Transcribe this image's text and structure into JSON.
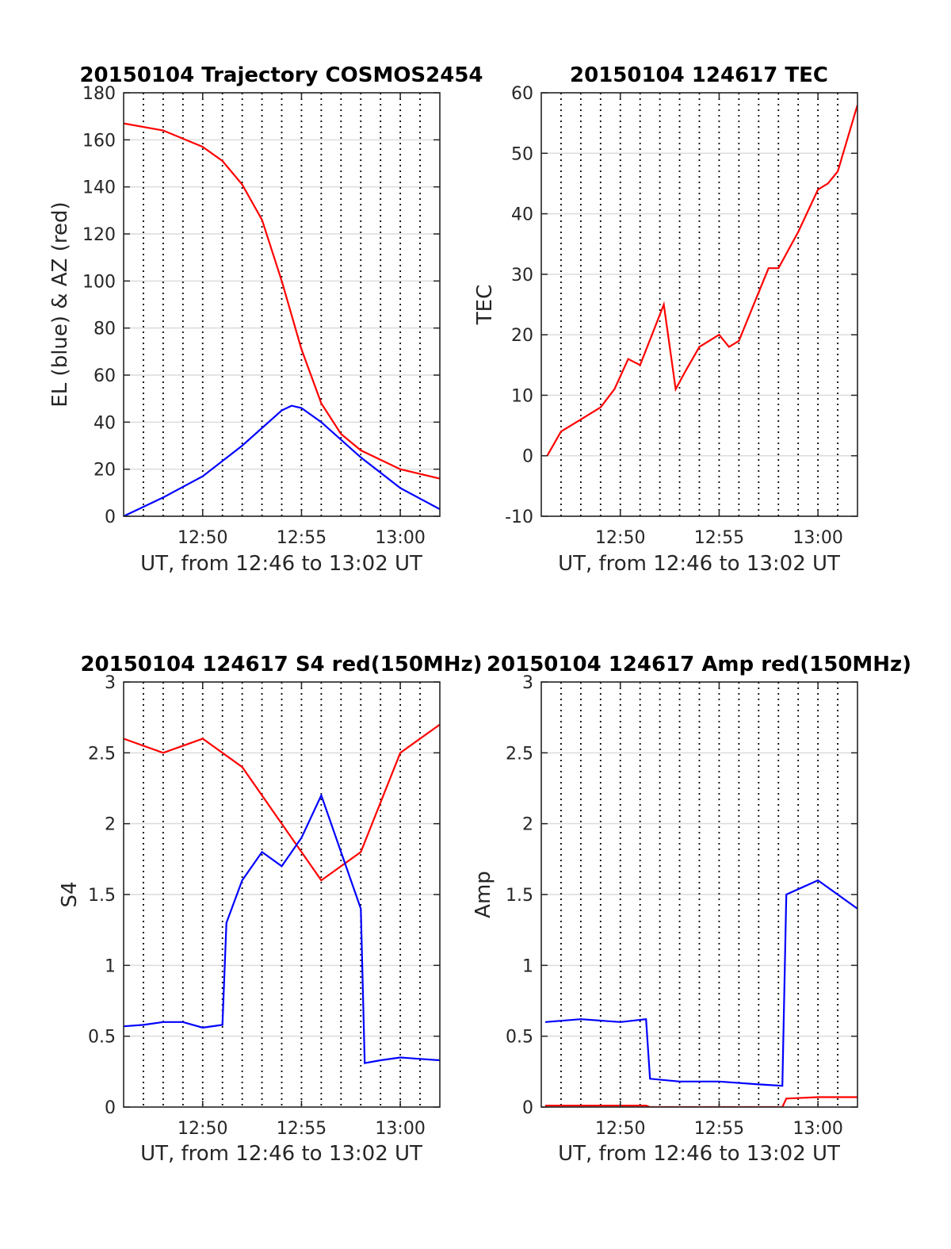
{
  "figure": {
    "background": "#ffffff"
  },
  "colors": {
    "red": "#ff0000",
    "blue": "#0000ff",
    "grid": "#dcdcdc",
    "vline": "#000000",
    "axis": "#262626"
  },
  "chart_data": [
    {
      "id": "trajectory",
      "type": "line",
      "title": "20150104 Trajectory COSMOS2454",
      "xlabel": "UT, from 12:46 to 13:02 UT",
      "ylabel": "EL (blue) & AZ (red)",
      "xlim": [
        "12:46",
        "13:02"
      ],
      "ylim": [
        0,
        180
      ],
      "yticks": [
        0,
        20,
        40,
        60,
        80,
        100,
        120,
        140,
        160,
        180
      ],
      "xticks": [
        "12:50",
        "12:55",
        "13:00"
      ],
      "grid": true,
      "legend": "none",
      "series": [
        {
          "color": "#ff0000",
          "x": [
            "12:46",
            "12:48",
            "12:50",
            "12:51",
            "12:52",
            "12:53",
            "12:54",
            "12:55",
            "12:56",
            "12:57",
            "12:58",
            "13:00",
            "13:02"
          ],
          "values": [
            167,
            164,
            157,
            151,
            141,
            126,
            100,
            71,
            48,
            35,
            28,
            20,
            16
          ]
        },
        {
          "color": "#0000ff",
          "x": [
            "12:46",
            "12:48",
            "12:50",
            "12:52",
            "12:54",
            "12:54.5",
            "12:55",
            "12:56",
            "12:58",
            "13:00",
            "13:02"
          ],
          "values": [
            0,
            8,
            17,
            30,
            45,
            47,
            46,
            40,
            25,
            12,
            3
          ]
        }
      ]
    },
    {
      "id": "tec",
      "type": "line",
      "title": "20150104 124617 TEC",
      "xlabel": "UT, from 12:46 to 13:02 UT",
      "ylabel": "TEC",
      "xlim": [
        "12:46",
        "13:02"
      ],
      "ylim": [
        -10,
        60
      ],
      "yticks": [
        -10,
        0,
        10,
        20,
        30,
        40,
        50,
        60
      ],
      "xticks": [
        "12:50",
        "12:55",
        "13:00"
      ],
      "grid": true,
      "legend": "none",
      "series": [
        {
          "color": "#ff0000",
          "x": [
            "12:46.3",
            "12:47",
            "12:48",
            "12:49",
            "12:49.7",
            "12:50.4",
            "12:51",
            "12:51.6",
            "12:52.2",
            "12:52.8",
            "12:53.3",
            "12:54",
            "12:55",
            "12:55.5",
            "12:56",
            "12:57",
            "12:57.5",
            "12:58",
            "12:59",
            "13:00",
            "13:00.5",
            "13:01",
            "13:02"
          ],
          "values": [
            0,
            4,
            6,
            8,
            11,
            16,
            15,
            20,
            25,
            11,
            14,
            18,
            20,
            18,
            19,
            27,
            31,
            31,
            37,
            44,
            45,
            47,
            58
          ]
        }
      ]
    },
    {
      "id": "s4",
      "type": "line",
      "title": "20150104 124617 S4 red(150MHz)",
      "xlabel": "UT, from 12:46 to 13:02 UT",
      "ylabel": "S4",
      "xlim": [
        "12:46",
        "13:02"
      ],
      "ylim": [
        0,
        3
      ],
      "yticks": [
        0,
        0.5,
        1,
        1.5,
        2,
        2.5,
        3
      ],
      "ytick_labels": [
        "0",
        "0.5",
        "1",
        "1.5",
        "2",
        "2.5",
        "3"
      ],
      "xticks": [
        "12:50",
        "12:55",
        "13:00"
      ],
      "grid": true,
      "legend": "none",
      "series": [
        {
          "color": "#ff0000",
          "x": [
            "12:46",
            "12:48",
            "12:50",
            "12:52",
            "12:54",
            "12:56",
            "12:58",
            "13:00",
            "13:02"
          ],
          "values": [
            2.6,
            2.5,
            2.6,
            2.4,
            2.0,
            1.6,
            1.8,
            2.5,
            2.7
          ]
        },
        {
          "color": "#0000ff",
          "x": [
            "12:46",
            "12:47",
            "12:48",
            "12:49",
            "12:50",
            "12:51",
            "12:51.2",
            "12:52",
            "12:53",
            "12:54",
            "12:55",
            "12:56",
            "12:57",
            "12:58",
            "12:58.2",
            "12:59",
            "13:00",
            "13:01",
            "13:02"
          ],
          "values": [
            0.57,
            0.58,
            0.6,
            0.6,
            0.56,
            0.58,
            1.3,
            1.6,
            1.8,
            1.7,
            1.9,
            2.2,
            1.8,
            1.4,
            0.31,
            0.33,
            0.35,
            0.34,
            0.33
          ]
        }
      ]
    },
    {
      "id": "amp",
      "type": "line",
      "title": "20150104 124617 Amp red(150MHz)",
      "xlabel": "UT, from 12:46 to 13:02 UT",
      "ylabel": "Amp",
      "xlim": [
        "12:46",
        "13:02"
      ],
      "ylim": [
        0,
        3
      ],
      "yticks": [
        0,
        0.5,
        1,
        1.5,
        2,
        2.5,
        3
      ],
      "ytick_labels": [
        "0",
        "0.5",
        "1",
        "1.5",
        "2",
        "2.5",
        "3"
      ],
      "xticks": [
        "12:50",
        "12:55",
        "13:00"
      ],
      "grid": true,
      "legend": "none",
      "series": [
        {
          "color": "#0000ff",
          "x": [
            "12:46.2",
            "12:48",
            "12:50",
            "12:51.3",
            "12:51.5",
            "12:53",
            "12:55",
            "12:57",
            "12:58.2",
            "12:58.4",
            "13:00",
            "13:02"
          ],
          "values": [
            0.6,
            0.62,
            0.6,
            0.62,
            0.2,
            0.18,
            0.18,
            0.16,
            0.15,
            1.5,
            1.6,
            1.4
          ]
        },
        {
          "color": "#ff0000",
          "x": [
            "12:46.2",
            "12:51.3",
            "12:51.5",
            "12:58.2",
            "12:58.4",
            "13:00",
            "13:02"
          ],
          "values": [
            0.01,
            0.01,
            0,
            0,
            0.06,
            0.07,
            0.07
          ]
        }
      ]
    }
  ]
}
